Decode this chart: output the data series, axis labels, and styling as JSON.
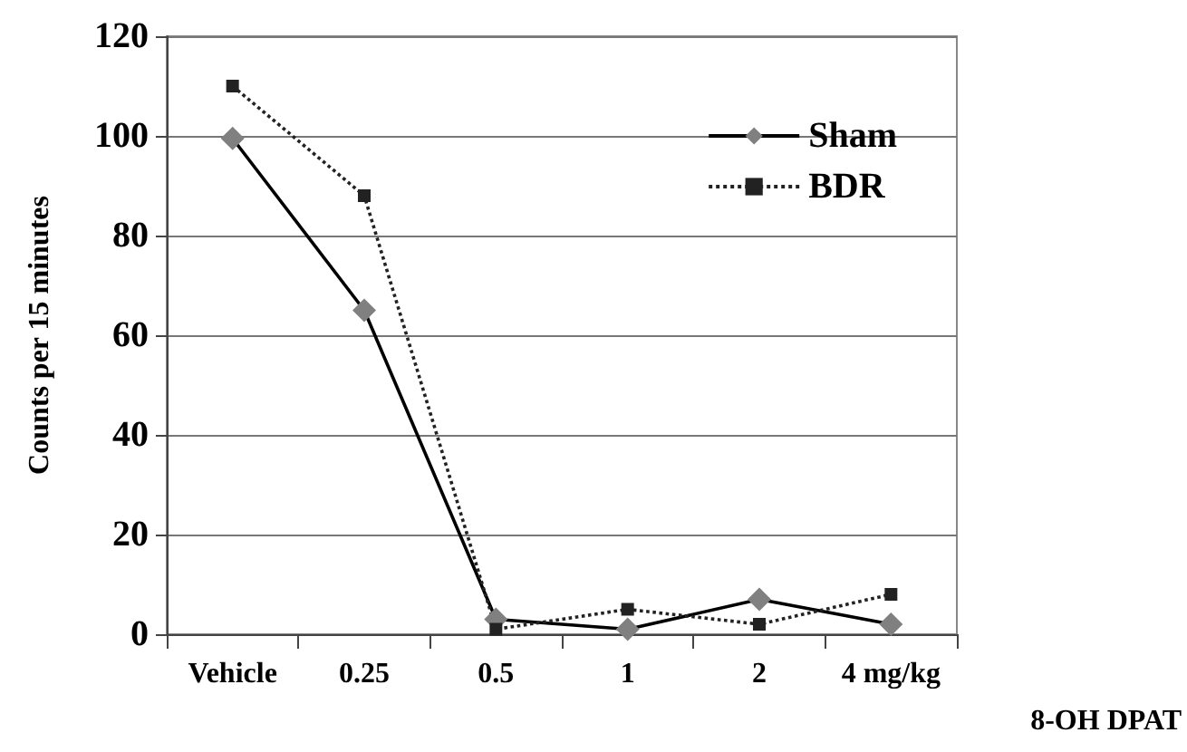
{
  "chart_data": {
    "type": "line",
    "xlabel": "8-OH DPAT",
    "ylabel": "Counts per 15 minutes",
    "categories": [
      "Vehicle",
      "0.25",
      "0.5",
      "1",
      "2",
      "4 mg/kg"
    ],
    "series": [
      {
        "name": "Sham",
        "color": "#000000",
        "marker": "diamond",
        "line_style": "solid",
        "values": [
          99.5,
          65,
          3,
          1,
          7,
          2
        ]
      },
      {
        "name": "BDR",
        "color": "#222222",
        "marker": "square",
        "line_style": "dotted",
        "values": [
          110,
          88,
          1,
          5,
          2,
          8
        ]
      }
    ],
    "ylim": [
      0,
      120
    ],
    "yticks": [
      0,
      20,
      40,
      60,
      80,
      100,
      120
    ],
    "grid": "y",
    "legend": "top right"
  }
}
